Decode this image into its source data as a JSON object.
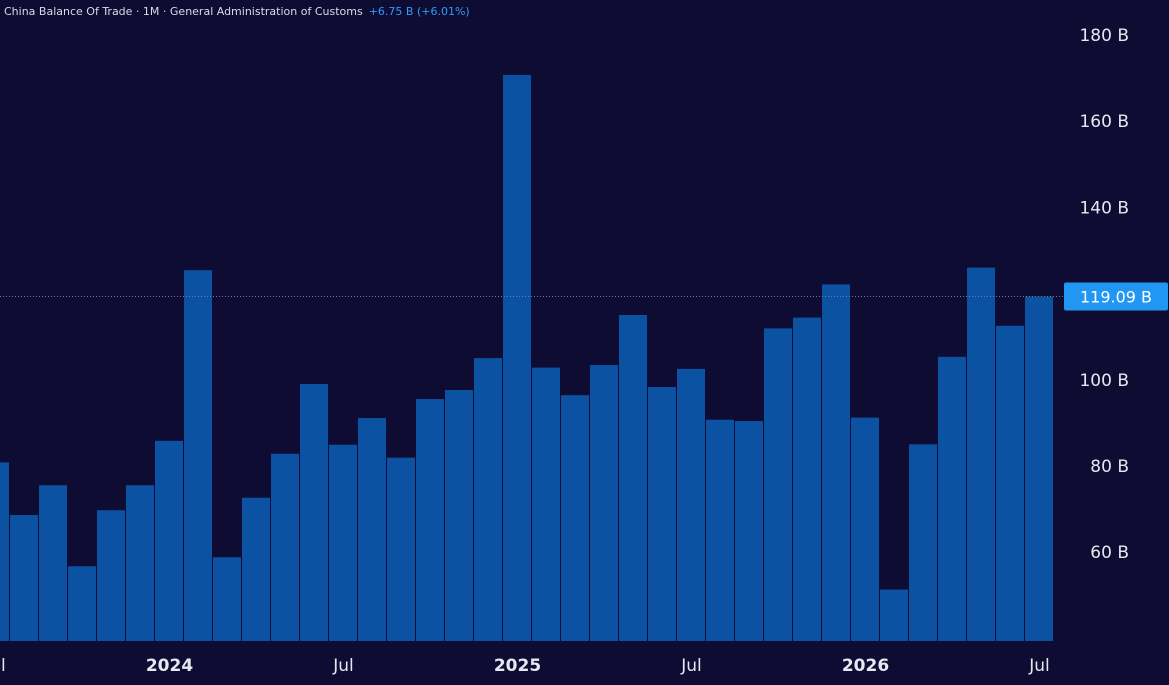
{
  "legend": {
    "title": "China Balance Of Trade · 1M · General Administration of Customs",
    "change": "+6.75 B (+6.01%)"
  },
  "last_value_label": "119.09 B",
  "colors": {
    "background": "#0f0c33",
    "bar": "#0b53a2",
    "last_label_bg": "#2196f3",
    "change_text": "#2f9cf5"
  },
  "chart_data": {
    "type": "bar",
    "title": "China Balance Of Trade · 1M · General Administration of Customs",
    "y_unit": "B",
    "ylim": [
      40,
      180
    ],
    "y_ticks": [
      {
        "value": 180,
        "label": "180 B"
      },
      {
        "value": 160,
        "label": "160 B"
      },
      {
        "value": 140,
        "label": "140 B"
      },
      {
        "value": 100,
        "label": "100 B"
      },
      {
        "value": 80,
        "label": "80 B"
      },
      {
        "value": 60,
        "label": "60 B"
      }
    ],
    "categories": [
      "2023-07",
      "2023-08",
      "2023-09",
      "2023-10",
      "2023-11",
      "2023-12",
      "2024-01",
      "2024-02",
      "2024-03",
      "2024-04",
      "2024-05",
      "2024-06",
      "2024-07",
      "2024-08",
      "2024-09",
      "2024-10",
      "2024-11",
      "2024-12",
      "2025-01",
      "2025-02",
      "2025-03",
      "2025-04",
      "2025-05",
      "2025-06",
      "2025-07",
      "2025-08",
      "2025-09",
      "2025-10",
      "2025-11",
      "2025-12",
      "2026-01",
      "2026-02",
      "2026-03",
      "2026-04",
      "2026-05",
      "2026-06",
      "2026-07"
    ],
    "values": [
      80.6,
      68.4,
      75.3,
      56.5,
      69.5,
      75.3,
      85.6,
      125.2,
      58.6,
      72.4,
      82.6,
      98.8,
      84.7,
      90.9,
      81.7,
      95.3,
      97.4,
      104.8,
      170.5,
      102.6,
      96.2,
      103.2,
      114.8,
      98.1,
      102.3,
      90.5,
      90.2,
      111.7,
      114.2,
      121.9,
      91.0,
      51.1,
      84.8,
      105.1,
      125.8,
      112.3,
      119.09
    ],
    "x_ticks": [
      {
        "category": "2023-07",
        "label": "Jul",
        "bold": false
      },
      {
        "category": "2024-01",
        "label": "2024",
        "bold": true
      },
      {
        "category": "2024-07",
        "label": "Jul",
        "bold": false
      },
      {
        "category": "2025-01",
        "label": "2025",
        "bold": true
      },
      {
        "category": "2025-07",
        "label": "Jul",
        "bold": false
      },
      {
        "category": "2026-01",
        "label": "2026",
        "bold": true
      },
      {
        "category": "2026-07",
        "label": "Jul",
        "bold": false
      }
    ],
    "last_value": 119.09,
    "grid": false
  }
}
